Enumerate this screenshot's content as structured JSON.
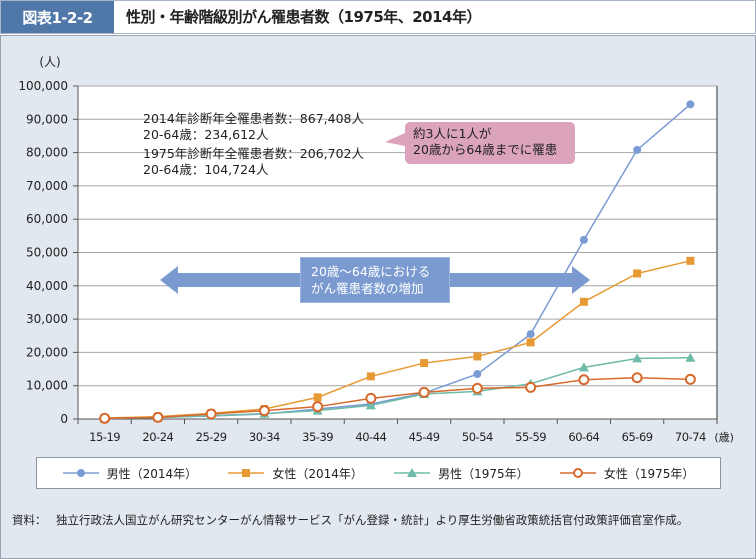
{
  "header": {
    "figure_label": "図表1-2-2",
    "title": "性別・年齢階級別がん罹患者数（1975年、2014年）"
  },
  "annotations": {
    "note_lines": [
      "2014年診断年全罹患者数：867,408人",
      "20-64歳：234,612人",
      "1975年診断年全罹患者数：206,702人",
      "20-64歳：104,724人"
    ],
    "callout_lines": [
      "約3人に1人が",
      "20歳から64歳までに罹患"
    ],
    "arrow_lines": [
      "20歳～64歳における",
      "がん罹患者数の増加"
    ]
  },
  "source": {
    "label": "資料：",
    "text": "独立行政法人国立がん研究センターがん情報サービス「がん登録・統計」より厚生労働省政策統括官付政策評価官室作成。"
  },
  "chart_data": {
    "type": "line",
    "title": "性別・年齢階級別がん罹患者数（1975年、2014年）",
    "xlabel": "(歳)",
    "ylabel": "(人)",
    "ylim": [
      0,
      100000
    ],
    "yticks": [
      0,
      10000,
      20000,
      30000,
      40000,
      50000,
      60000,
      70000,
      80000,
      90000,
      100000
    ],
    "ytick_labels": [
      "0",
      "10,000",
      "20,000",
      "30,000",
      "40,000",
      "50,000",
      "60,000",
      "70,000",
      "80,000",
      "90,000",
      "100,000"
    ],
    "grid": true,
    "legend_position": "bottom",
    "categories": [
      "15-19",
      "20-24",
      "25-29",
      "30-34",
      "35-39",
      "40-44",
      "45-49",
      "50-54",
      "55-59",
      "60-64",
      "65-69",
      "70-74"
    ],
    "series": [
      {
        "name": "男性（2014年）",
        "color": "#7b9bd4",
        "marker": "circle",
        "values": [
          300,
          500,
          900,
          1500,
          3000,
          4500,
          7800,
          13500,
          25500,
          53800,
          80800,
          94500
        ]
      },
      {
        "name": "女性（2014年）",
        "color": "#e79a33",
        "marker": "square",
        "values": [
          300,
          700,
          1700,
          3000,
          6500,
          12800,
          16800,
          18800,
          23000,
          35200,
          43700,
          47500
        ]
      },
      {
        "name": "男性（1975年）",
        "color": "#6dbba8",
        "marker": "triangle",
        "values": [
          200,
          400,
          1000,
          1600,
          2500,
          4100,
          7500,
          8300,
          10600,
          15500,
          18200,
          18400
        ]
      },
      {
        "name": "女性（1975年）",
        "color": "#d8692d",
        "marker": "open-circle",
        "values": [
          200,
          500,
          1500,
          2500,
          3700,
          6200,
          8000,
          9200,
          9500,
          11800,
          12400,
          11900
        ]
      }
    ]
  }
}
